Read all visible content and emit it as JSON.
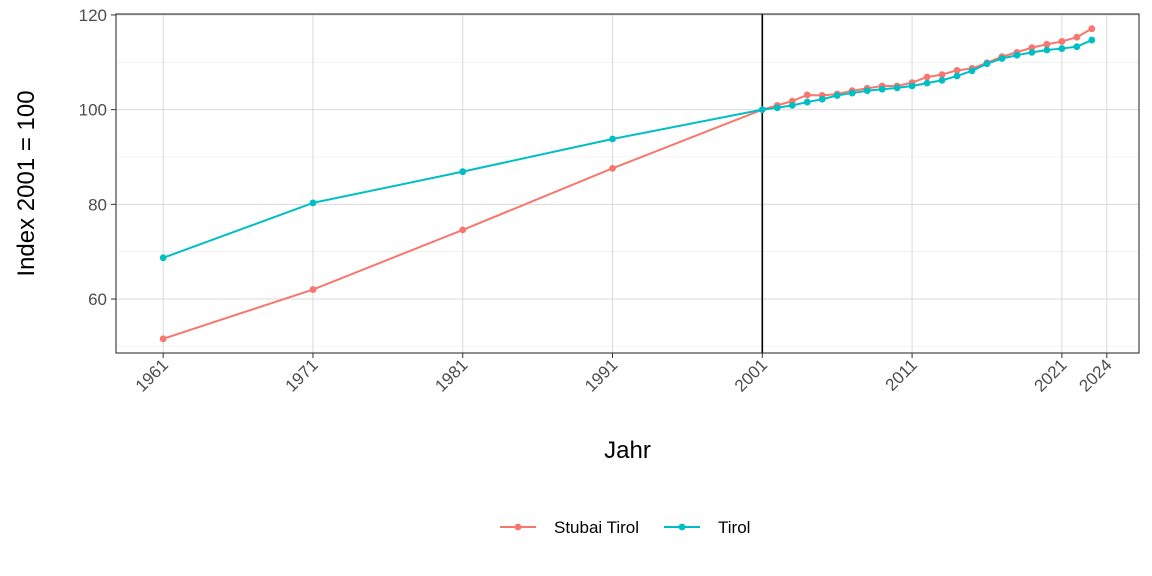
{
  "chart_data": {
    "type": "line",
    "xlabel": "Jahr",
    "ylabel": "Index 2001 = 100",
    "xlim": [
      1957.85,
      2026.15
    ],
    "ylim": [
      48.6,
      120.2
    ],
    "x_ticks": [
      1961,
      1971,
      1981,
      1991,
      2001,
      2011,
      2021,
      2024
    ],
    "y_ticks": [
      60,
      80,
      100,
      120
    ],
    "vline_x": 2001,
    "grid": true,
    "legend_position": "bottom",
    "series": [
      {
        "name": "Stubai Tirol",
        "color": "#F8766D",
        "x": [
          1961,
          1971,
          1981,
          1991,
          2001,
          2002,
          2003,
          2004,
          2005,
          2006,
          2007,
          2008,
          2009,
          2010,
          2011,
          2012,
          2013,
          2014,
          2015,
          2016,
          2017,
          2018,
          2019,
          2020,
          2021,
          2022,
          2023
        ],
        "values": [
          51.6,
          62.0,
          74.6,
          87.6,
          100.0,
          100.9,
          101.8,
          103.1,
          103.0,
          103.3,
          104.0,
          104.5,
          105.0,
          105.0,
          105.7,
          106.9,
          107.4,
          108.3,
          108.7,
          109.9,
          111.2,
          112.1,
          113.1,
          113.8,
          114.4,
          115.3,
          117.1
        ]
      },
      {
        "name": "Tirol",
        "color": "#00BFC4",
        "x": [
          1961,
          1971,
          1981,
          1991,
          2001,
          2002,
          2003,
          2004,
          2005,
          2006,
          2007,
          2008,
          2009,
          2010,
          2011,
          2012,
          2013,
          2014,
          2015,
          2016,
          2017,
          2018,
          2019,
          2020,
          2021,
          2022,
          2023
        ],
        "values": [
          68.7,
          80.3,
          86.9,
          93.8,
          100.0,
          100.4,
          100.9,
          101.6,
          102.2,
          103.0,
          103.5,
          104.0,
          104.3,
          104.6,
          105.0,
          105.6,
          106.2,
          107.1,
          108.2,
          109.7,
          110.8,
          111.5,
          112.1,
          112.6,
          112.9,
          113.3,
          114.7
        ]
      }
    ]
  }
}
